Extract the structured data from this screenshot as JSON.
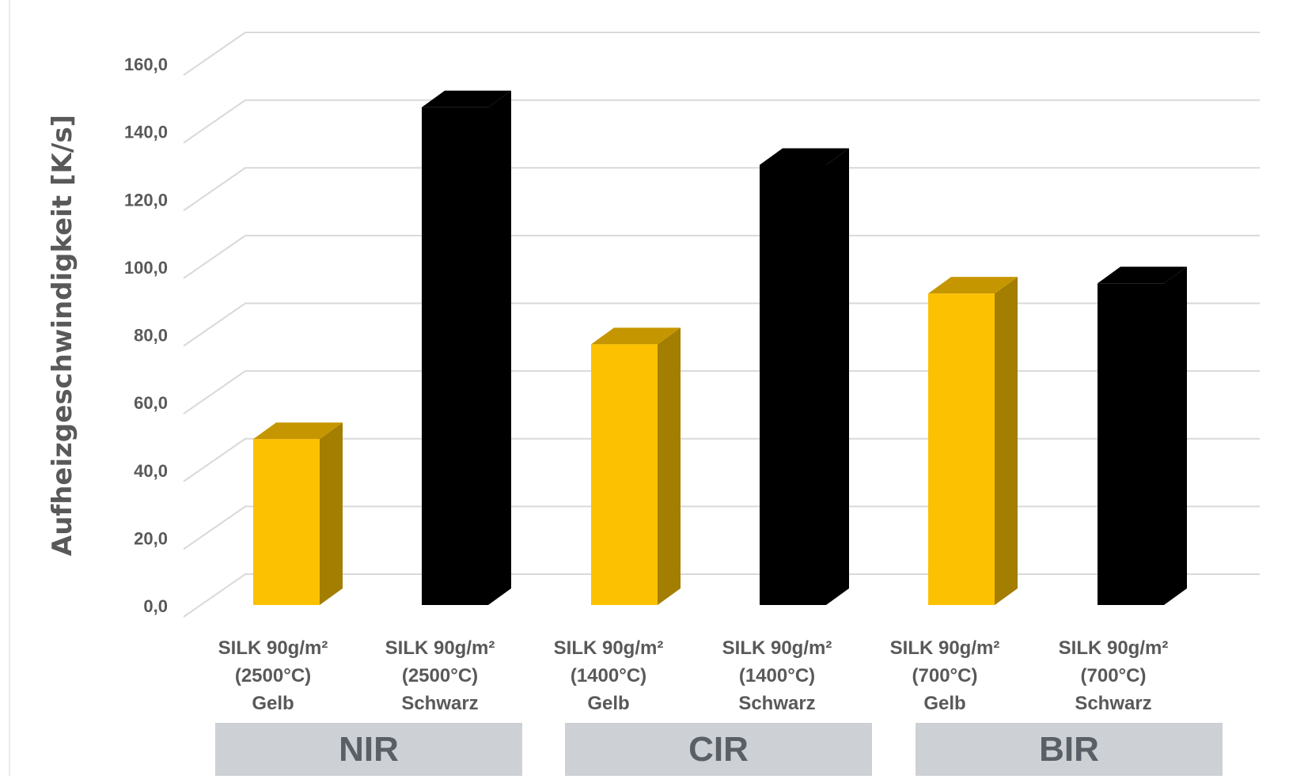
{
  "chart_data": {
    "type": "bar",
    "title": "",
    "ylabel": "Aufheizgeschwindigkeit [K/s]",
    "xlabel": "",
    "ylim": [
      0,
      160
    ],
    "y_ticks": [
      "0,0",
      "20,0",
      "40,0",
      "60,0",
      "80,0",
      "100,0",
      "120,0",
      "140,0",
      "160,0"
    ],
    "grid": true,
    "style": "3d-bars",
    "categories": [
      [
        "SILK 90g/m²",
        "(2500°C)",
        "Gelb"
      ],
      [
        "SILK 90g/m²",
        "(2500°C)",
        "Schwarz"
      ],
      [
        "SILK 90g/m²",
        "(1400°C)",
        "Gelb"
      ],
      [
        "SILK 90g/m²",
        "(1400°C)",
        "Schwarz"
      ],
      [
        "SILK 90g/m²",
        "(700°C)",
        "Gelb"
      ],
      [
        "SILK 90g/m²",
        "(700°C)",
        "Schwarz"
      ]
    ],
    "values": [
      49,
      147,
      77,
      130,
      92,
      95
    ],
    "bar_colors": [
      "#fcc100",
      "#000000",
      "#fcc100",
      "#000000",
      "#fcc100",
      "#000000"
    ],
    "groups": [
      {
        "label": "NIR",
        "members": [
          0,
          1
        ]
      },
      {
        "label": "CIR",
        "members": [
          2,
          3
        ]
      },
      {
        "label": "BIR",
        "members": [
          4,
          5
        ]
      }
    ]
  },
  "colors": {
    "yellow_front": "#fcc100",
    "yellow_side": "#a37e00",
    "yellow_top": "#c69600",
    "black": "#000000",
    "grid": "#d9d9d9",
    "axis_text": "#595959",
    "group_box": "#cdd0d4",
    "group_text": "#595f66"
  }
}
